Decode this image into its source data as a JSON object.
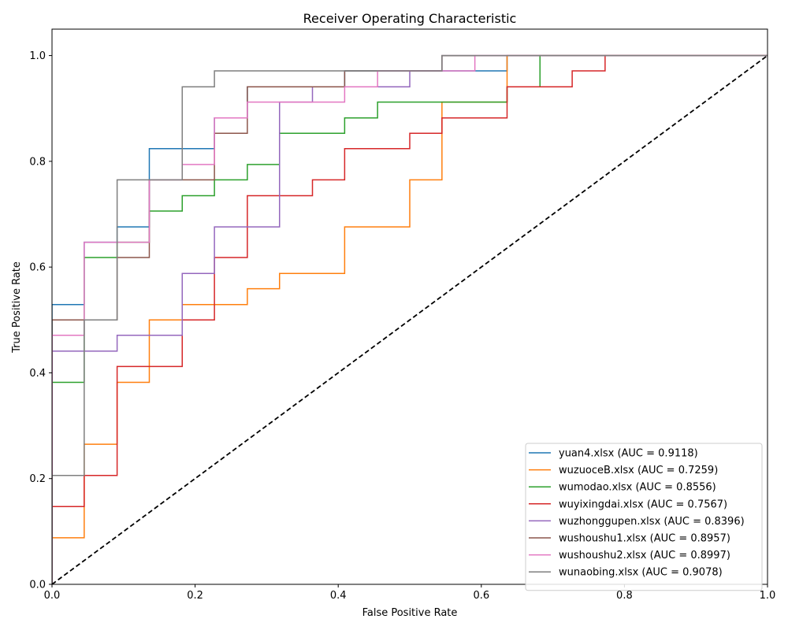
{
  "chart_data": {
    "type": "line",
    "title": "Receiver Operating Characteristic",
    "xlabel": "False Positive Rate",
    "ylabel": "True Positive Rate",
    "xlim": [
      0.0,
      1.0
    ],
    "ylim": [
      0.0,
      1.05
    ],
    "xticks": [
      "0.0",
      "0.2",
      "0.4",
      "0.6",
      "0.8",
      "1.0"
    ],
    "yticks": [
      "0.0",
      "0.2",
      "0.4",
      "0.6",
      "0.8",
      "1.0"
    ],
    "grid": false,
    "legend_position": "lower-right",
    "reference_line": {
      "name": "chance",
      "color": "#000000",
      "style": "dashed",
      "points": [
        [
          0,
          0
        ],
        [
          1,
          1
        ]
      ]
    },
    "series": [
      {
        "name": "yuan4.xlsx (AUC = 0.9118)",
        "color": "#1f77b4",
        "points": [
          [
            0,
            0
          ],
          [
            0,
            0.529
          ],
          [
            0.045,
            0.529
          ],
          [
            0.045,
            0.647
          ],
          [
            0.091,
            0.647
          ],
          [
            0.091,
            0.676
          ],
          [
            0.136,
            0.676
          ],
          [
            0.136,
            0.824
          ],
          [
            0.227,
            0.824
          ],
          [
            0.227,
            0.882
          ],
          [
            0.273,
            0.882
          ],
          [
            0.273,
            0.941
          ],
          [
            0.409,
            0.941
          ],
          [
            0.409,
            0.971
          ],
          [
            0.591,
            0.971
          ],
          [
            0.636,
            0.971
          ],
          [
            0.636,
            1.0
          ],
          [
            1.0,
            1.0
          ]
        ]
      },
      {
        "name": "wuzuoceB.xlsx (AUC = 0.7259)",
        "color": "#ff7f0e",
        "points": [
          [
            0,
            0
          ],
          [
            0,
            0.088
          ],
          [
            0.045,
            0.088
          ],
          [
            0.045,
            0.265
          ],
          [
            0.091,
            0.265
          ],
          [
            0.091,
            0.382
          ],
          [
            0.136,
            0.382
          ],
          [
            0.136,
            0.5
          ],
          [
            0.182,
            0.5
          ],
          [
            0.182,
            0.529
          ],
          [
            0.273,
            0.529
          ],
          [
            0.273,
            0.559
          ],
          [
            0.318,
            0.559
          ],
          [
            0.318,
            0.588
          ],
          [
            0.409,
            0.588
          ],
          [
            0.409,
            0.676
          ],
          [
            0.5,
            0.676
          ],
          [
            0.5,
            0.765
          ],
          [
            0.545,
            0.765
          ],
          [
            0.545,
            0.912
          ],
          [
            0.636,
            0.912
          ],
          [
            0.636,
            1.0
          ],
          [
            1.0,
            1.0
          ]
        ]
      },
      {
        "name": "wumodao.xlsx (AUC = 0.8556)",
        "color": "#2ca02c",
        "points": [
          [
            0,
            0
          ],
          [
            0,
            0.382
          ],
          [
            0.045,
            0.382
          ],
          [
            0.045,
            0.618
          ],
          [
            0.091,
            0.618
          ],
          [
            0.091,
            0.647
          ],
          [
            0.136,
            0.647
          ],
          [
            0.136,
            0.706
          ],
          [
            0.182,
            0.706
          ],
          [
            0.182,
            0.735
          ],
          [
            0.227,
            0.735
          ],
          [
            0.227,
            0.765
          ],
          [
            0.273,
            0.765
          ],
          [
            0.273,
            0.794
          ],
          [
            0.318,
            0.794
          ],
          [
            0.318,
            0.853
          ],
          [
            0.409,
            0.853
          ],
          [
            0.409,
            0.882
          ],
          [
            0.455,
            0.882
          ],
          [
            0.455,
            0.912
          ],
          [
            0.636,
            0.912
          ],
          [
            0.636,
            0.941
          ],
          [
            0.682,
            0.941
          ],
          [
            0.682,
            1.0
          ],
          [
            1.0,
            1.0
          ]
        ]
      },
      {
        "name": "wuyixingdai.xlsx (AUC = 0.7567)",
        "color": "#d62728",
        "points": [
          [
            0,
            0
          ],
          [
            0,
            0.147
          ],
          [
            0.045,
            0.147
          ],
          [
            0.045,
            0.206
          ],
          [
            0.091,
            0.206
          ],
          [
            0.091,
            0.412
          ],
          [
            0.182,
            0.412
          ],
          [
            0.182,
            0.5
          ],
          [
            0.227,
            0.5
          ],
          [
            0.227,
            0.618
          ],
          [
            0.273,
            0.618
          ],
          [
            0.273,
            0.735
          ],
          [
            0.364,
            0.735
          ],
          [
            0.364,
            0.765
          ],
          [
            0.409,
            0.765
          ],
          [
            0.409,
            0.824
          ],
          [
            0.5,
            0.824
          ],
          [
            0.5,
            0.853
          ],
          [
            0.545,
            0.853
          ],
          [
            0.545,
            0.882
          ],
          [
            0.636,
            0.882
          ],
          [
            0.636,
            0.941
          ],
          [
            0.727,
            0.941
          ],
          [
            0.727,
            0.971
          ],
          [
            0.773,
            0.971
          ],
          [
            0.773,
            1.0
          ],
          [
            1.0,
            1.0
          ]
        ]
      },
      {
        "name": "wuzhonggupen.xlsx (AUC = 0.8396)",
        "color": "#9467bd",
        "points": [
          [
            0,
            0
          ],
          [
            0,
            0.441
          ],
          [
            0.091,
            0.441
          ],
          [
            0.091,
            0.471
          ],
          [
            0.182,
            0.471
          ],
          [
            0.182,
            0.588
          ],
          [
            0.227,
            0.588
          ],
          [
            0.227,
            0.676
          ],
          [
            0.318,
            0.676
          ],
          [
            0.318,
            0.912
          ],
          [
            0.364,
            0.912
          ],
          [
            0.364,
            0.941
          ],
          [
            0.455,
            0.941
          ],
          [
            0.5,
            0.941
          ],
          [
            0.5,
            0.971
          ],
          [
            0.545,
            0.971
          ],
          [
            0.545,
            1.0
          ],
          [
            1.0,
            1.0
          ]
        ]
      },
      {
        "name": "wushoushu1.xlsx (AUC = 0.8957)",
        "color": "#8c564b",
        "points": [
          [
            0,
            0
          ],
          [
            0,
            0.5
          ],
          [
            0.091,
            0.5
          ],
          [
            0.091,
            0.618
          ],
          [
            0.136,
            0.618
          ],
          [
            0.136,
            0.765
          ],
          [
            0.227,
            0.765
          ],
          [
            0.227,
            0.853
          ],
          [
            0.273,
            0.853
          ],
          [
            0.273,
            0.941
          ],
          [
            0.409,
            0.941
          ],
          [
            0.409,
            0.971
          ],
          [
            0.545,
            0.971
          ],
          [
            0.545,
            1.0
          ],
          [
            1.0,
            1.0
          ]
        ]
      },
      {
        "name": "wushoushu2.xlsx (AUC = 0.8997)",
        "color": "#e377c2",
        "points": [
          [
            0,
            0
          ],
          [
            0,
            0.471
          ],
          [
            0.045,
            0.471
          ],
          [
            0.045,
            0.647
          ],
          [
            0.136,
            0.647
          ],
          [
            0.136,
            0.765
          ],
          [
            0.182,
            0.765
          ],
          [
            0.182,
            0.794
          ],
          [
            0.227,
            0.794
          ],
          [
            0.227,
            0.882
          ],
          [
            0.273,
            0.882
          ],
          [
            0.273,
            0.912
          ],
          [
            0.409,
            0.912
          ],
          [
            0.409,
            0.941
          ],
          [
            0.455,
            0.941
          ],
          [
            0.455,
            0.971
          ],
          [
            0.591,
            0.971
          ],
          [
            0.591,
            1.0
          ],
          [
            1.0,
            1.0
          ]
        ]
      },
      {
        "name": "wunaobing.xlsx (AUC = 0.9078)",
        "color": "#7f7f7f",
        "points": [
          [
            0,
            0
          ],
          [
            0,
            0.206
          ],
          [
            0.045,
            0.206
          ],
          [
            0.045,
            0.5
          ],
          [
            0.091,
            0.5
          ],
          [
            0.091,
            0.765
          ],
          [
            0.182,
            0.765
          ],
          [
            0.182,
            0.941
          ],
          [
            0.227,
            0.941
          ],
          [
            0.227,
            0.971
          ],
          [
            0.545,
            0.971
          ],
          [
            0.545,
            1.0
          ],
          [
            1.0,
            1.0
          ]
        ]
      }
    ]
  }
}
